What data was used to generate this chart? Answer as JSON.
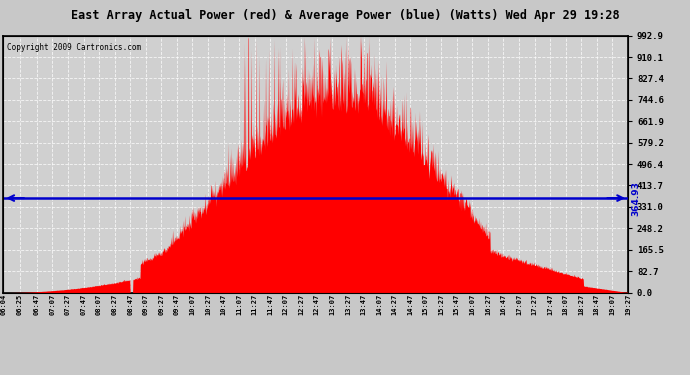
{
  "title": "East Array Actual Power (red) & Average Power (blue) (Watts) Wed Apr 29 19:28",
  "copyright": "Copyright 2009 Cartronics.com",
  "average_power": 364.93,
  "y_max": 992.9,
  "y_min": 0.0,
  "y_ticks": [
    0.0,
    82.7,
    165.5,
    248.2,
    331.0,
    413.7,
    496.4,
    579.2,
    661.9,
    744.6,
    827.4,
    910.1,
    992.9
  ],
  "fill_color": "#FF0000",
  "line_color": "#0000CC",
  "bg_color": "#C8C8C8",
  "plot_bg_color": "#C8C8C8",
  "grid_color": "#FFFFFF",
  "title_bg": "#FFFFFF",
  "time_labels": [
    "06:04",
    "06:25",
    "06:47",
    "07:07",
    "07:27",
    "07:47",
    "08:07",
    "08:27",
    "08:47",
    "09:07",
    "09:27",
    "09:47",
    "10:07",
    "10:27",
    "10:47",
    "11:07",
    "11:27",
    "11:47",
    "12:07",
    "12:27",
    "12:47",
    "13:07",
    "13:27",
    "13:47",
    "14:07",
    "14:27",
    "14:47",
    "15:07",
    "15:27",
    "15:47",
    "16:07",
    "16:27",
    "16:47",
    "17:07",
    "17:27",
    "17:47",
    "18:07",
    "18:27",
    "18:47",
    "19:07",
    "19:27"
  ]
}
